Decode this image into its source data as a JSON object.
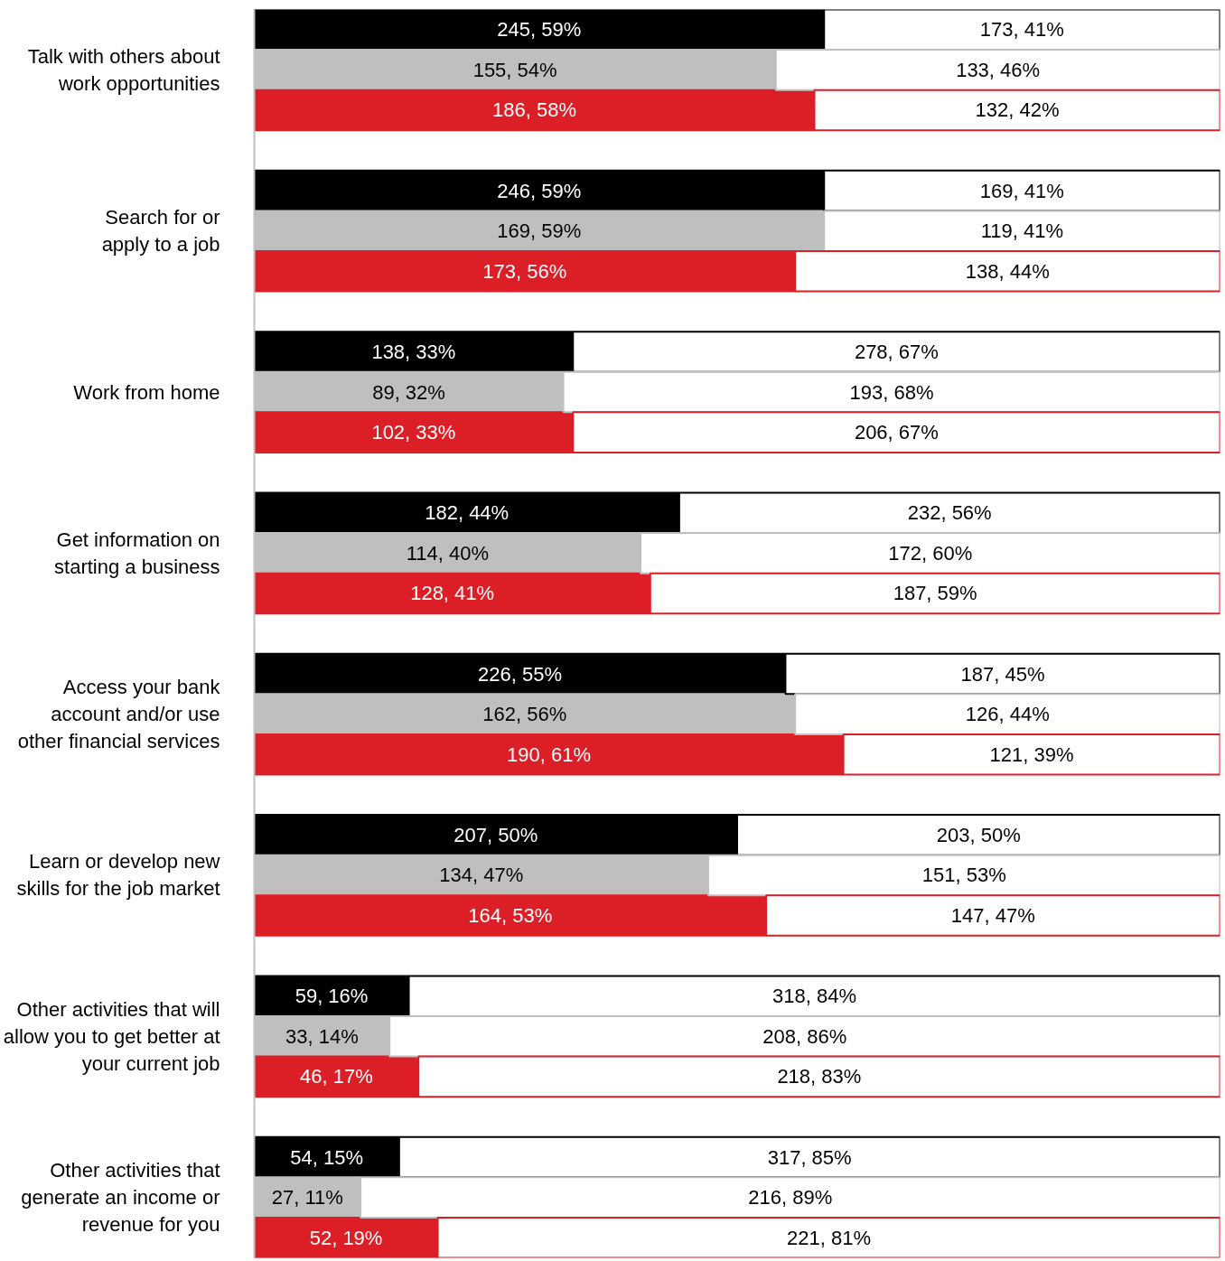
{
  "chart_data": {
    "type": "bar",
    "orientation": "horizontal",
    "stacked": true,
    "xlim": [
      0,
      100
    ],
    "tick_labels": "y",
    "grid": false,
    "categories": [
      null,
      "Talk with others about\nwork opportunities",
      null,
      null,
      null,
      "Search for or\napply to a job",
      null,
      null,
      null,
      "Work from home",
      null,
      null,
      null,
      "Get information on\nstarting a business",
      null,
      null,
      null,
      "Access your bank\naccount and/or use\nother financial services",
      null,
      null,
      null,
      "Learn or develop new\nskills for the job market",
      null,
      null,
      null,
      "Other activities that will\nallow you to get better at\nyour current job",
      null,
      null,
      null,
      "Other activities that\ngenerate an income or\nrevenue for you",
      null
    ],
    "series": [
      {
        "colors": [
          "#000000",
          "#bfbfbf",
          "#dc1f26",
          null,
          "#000000",
          "#bfbfbf",
          "#dc1f26",
          null,
          "#000000",
          "#bfbfbf",
          "#dc1f26",
          null,
          "#000000",
          "#bfbfbf",
          "#dc1f26",
          null,
          "#000000",
          "#bfbfbf",
          "#dc1f26",
          null,
          "#000000",
          "#bfbfbf",
          "#dc1f26",
          null,
          "#000000",
          "#bfbfbf",
          "#dc1f26",
          null,
          "#000000",
          "#bfbfbf",
          "#dc1f26"
        ],
        "values": [
          59,
          54,
          58,
          null,
          59,
          59,
          56,
          null,
          33,
          32,
          33,
          null,
          44,
          40,
          41,
          null,
          55,
          56,
          61,
          null,
          50,
          47,
          53,
          null,
          16,
          14,
          17,
          null,
          15,
          11,
          19
        ],
        "value_labels": [
          "245, 59%",
          "155, 54%",
          "186, 58%",
          null,
          "246, 59%",
          "169, 59%",
          "173, 56%",
          null,
          "138, 33%",
          "89, 32%",
          "102, 33%",
          null,
          "182, 44%",
          "114, 40%",
          "128, 41%",
          null,
          "226, 55%",
          "162, 56%",
          "190, 61%",
          null,
          "207, 50%",
          "134, 47%",
          "164, 53%",
          null,
          "59, 16%",
          "33, 14%",
          "46, 17%",
          null,
          "54, 15%",
          "27, 11%",
          "52, 19%"
        ]
      },
      {
        "color": "#ffffff",
        "values": [
          41,
          46,
          42,
          null,
          41,
          41,
          44,
          null,
          67,
          68,
          67,
          null,
          56,
          60,
          59,
          null,
          45,
          44,
          39,
          null,
          50,
          53,
          47,
          null,
          84,
          86,
          83,
          null,
          85,
          89,
          81
        ],
        "value_labels": [
          "173, 41%",
          "133, 46%",
          "132, 42%",
          null,
          "169, 41%",
          "119, 41%",
          "138, 44%",
          null,
          "278, 67%",
          "193, 68%",
          "206, 67%",
          null,
          "232, 56%",
          "172, 60%",
          "187, 59%",
          null,
          "187, 45%",
          "126, 44%",
          "121, 39%",
          null,
          "203, 50%",
          "151, 53%",
          "147, 47%",
          null,
          "318, 84%",
          "208, 86%",
          "218, 83%",
          null,
          "317, 85%",
          "216, 89%",
          "221, 81%"
        ]
      }
    ]
  }
}
